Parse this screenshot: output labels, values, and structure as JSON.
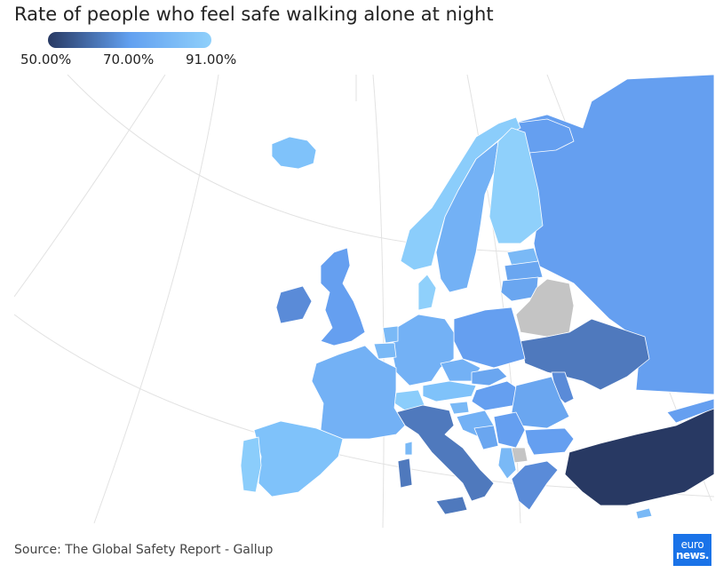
{
  "title": "Rate of people who feel safe walking alone at night",
  "legend": {
    "min_label": "50.00%",
    "mid_label": "70.00%",
    "max_label": "91.00%",
    "min_value": 50,
    "mid_value": 70,
    "max_value": 91,
    "color_min": "#283963",
    "color_mid": "#62a0f0",
    "color_max": "#8fd0fb"
  },
  "colors": {
    "sea": "#ffffff",
    "no_data": "#c4c4c4",
    "grid": "#e2e2e2"
  },
  "source": "Source: The Global Safety Report - Gallup",
  "logo": {
    "line1": "euro",
    "line2": "news."
  }
}
